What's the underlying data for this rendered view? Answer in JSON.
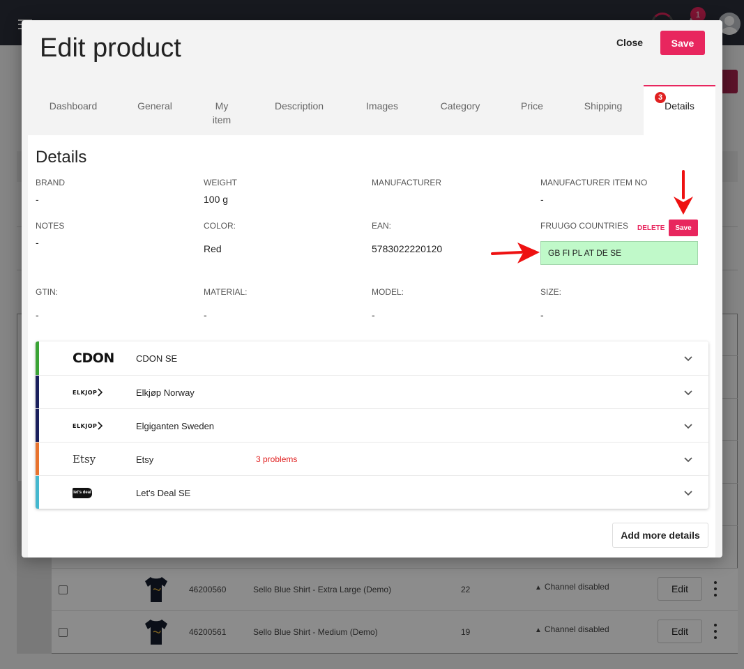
{
  "background": {
    "notification_count": "1",
    "rows": [
      {
        "sku": "46200560",
        "name": "Sello Blue Shirt - Extra Large (Demo)",
        "qty": "22",
        "status": "Channel disabled",
        "edit_label": "Edit"
      },
      {
        "sku": "46200561",
        "name": "Sello Blue Shirt - Medium (Demo)",
        "qty": "19",
        "status": "Channel disabled",
        "edit_label": "Edit"
      }
    ]
  },
  "modal": {
    "title": "Edit product",
    "close_label": "Close",
    "save_label": "Save",
    "tabs": [
      {
        "label": "Dashboard"
      },
      {
        "label": "General"
      },
      {
        "label": "My item"
      },
      {
        "label": "Description"
      },
      {
        "label": "Images"
      },
      {
        "label": "Category"
      },
      {
        "label": "Price"
      },
      {
        "label": "Shipping"
      },
      {
        "label": "Details",
        "badge": "3",
        "active": true
      }
    ],
    "details": {
      "title": "Details",
      "fields": [
        {
          "label": "BRAND",
          "value": "-"
        },
        {
          "label": "WEIGHT",
          "value": "100 g"
        },
        {
          "label": "MANUFACTURER",
          "value": ""
        },
        {
          "label": "MANUFACTURER ITEM NO",
          "value": "-"
        },
        {
          "label": "NOTES",
          "value": "-"
        },
        {
          "label": "COLOR:",
          "value": "Red"
        },
        {
          "label": "EAN:",
          "value": "5783022220120"
        },
        {
          "label": "FRUUGO COUNTRIES",
          "value": "GB FI PL AT DE SE"
        },
        {
          "label": "GTIN:",
          "value": "-"
        },
        {
          "label": "MATERIAL:",
          "value": "-"
        },
        {
          "label": "MODEL:",
          "value": "-"
        },
        {
          "label": "SIZE:",
          "value": "-"
        }
      ],
      "delete_label": "DELETE",
      "field_save_label": "Save",
      "input_color": "#c0f9c9"
    },
    "channels": [
      {
        "logo": "CDON",
        "name": "CDON SE",
        "color": "#3aa335",
        "problems": ""
      },
      {
        "logo": "ELKJOP",
        "name": "Elkjøp Norway",
        "color": "#1a1f5c",
        "problems": ""
      },
      {
        "logo": "ELKJOP",
        "name": "Elgiganten Sweden",
        "color": "#1a1f5c",
        "problems": ""
      },
      {
        "logo": "Etsy",
        "name": "Etsy",
        "color": "#e8732e",
        "problems": "3 problems"
      },
      {
        "logo": "let's deal",
        "name": "Let's Deal SE",
        "color": "#45b8cf",
        "problems": ""
      }
    ],
    "add_details_label": "Add more details"
  },
  "colors": {
    "accent": "#e8265e",
    "arrow": "#ee1111",
    "error": "#e02020"
  }
}
